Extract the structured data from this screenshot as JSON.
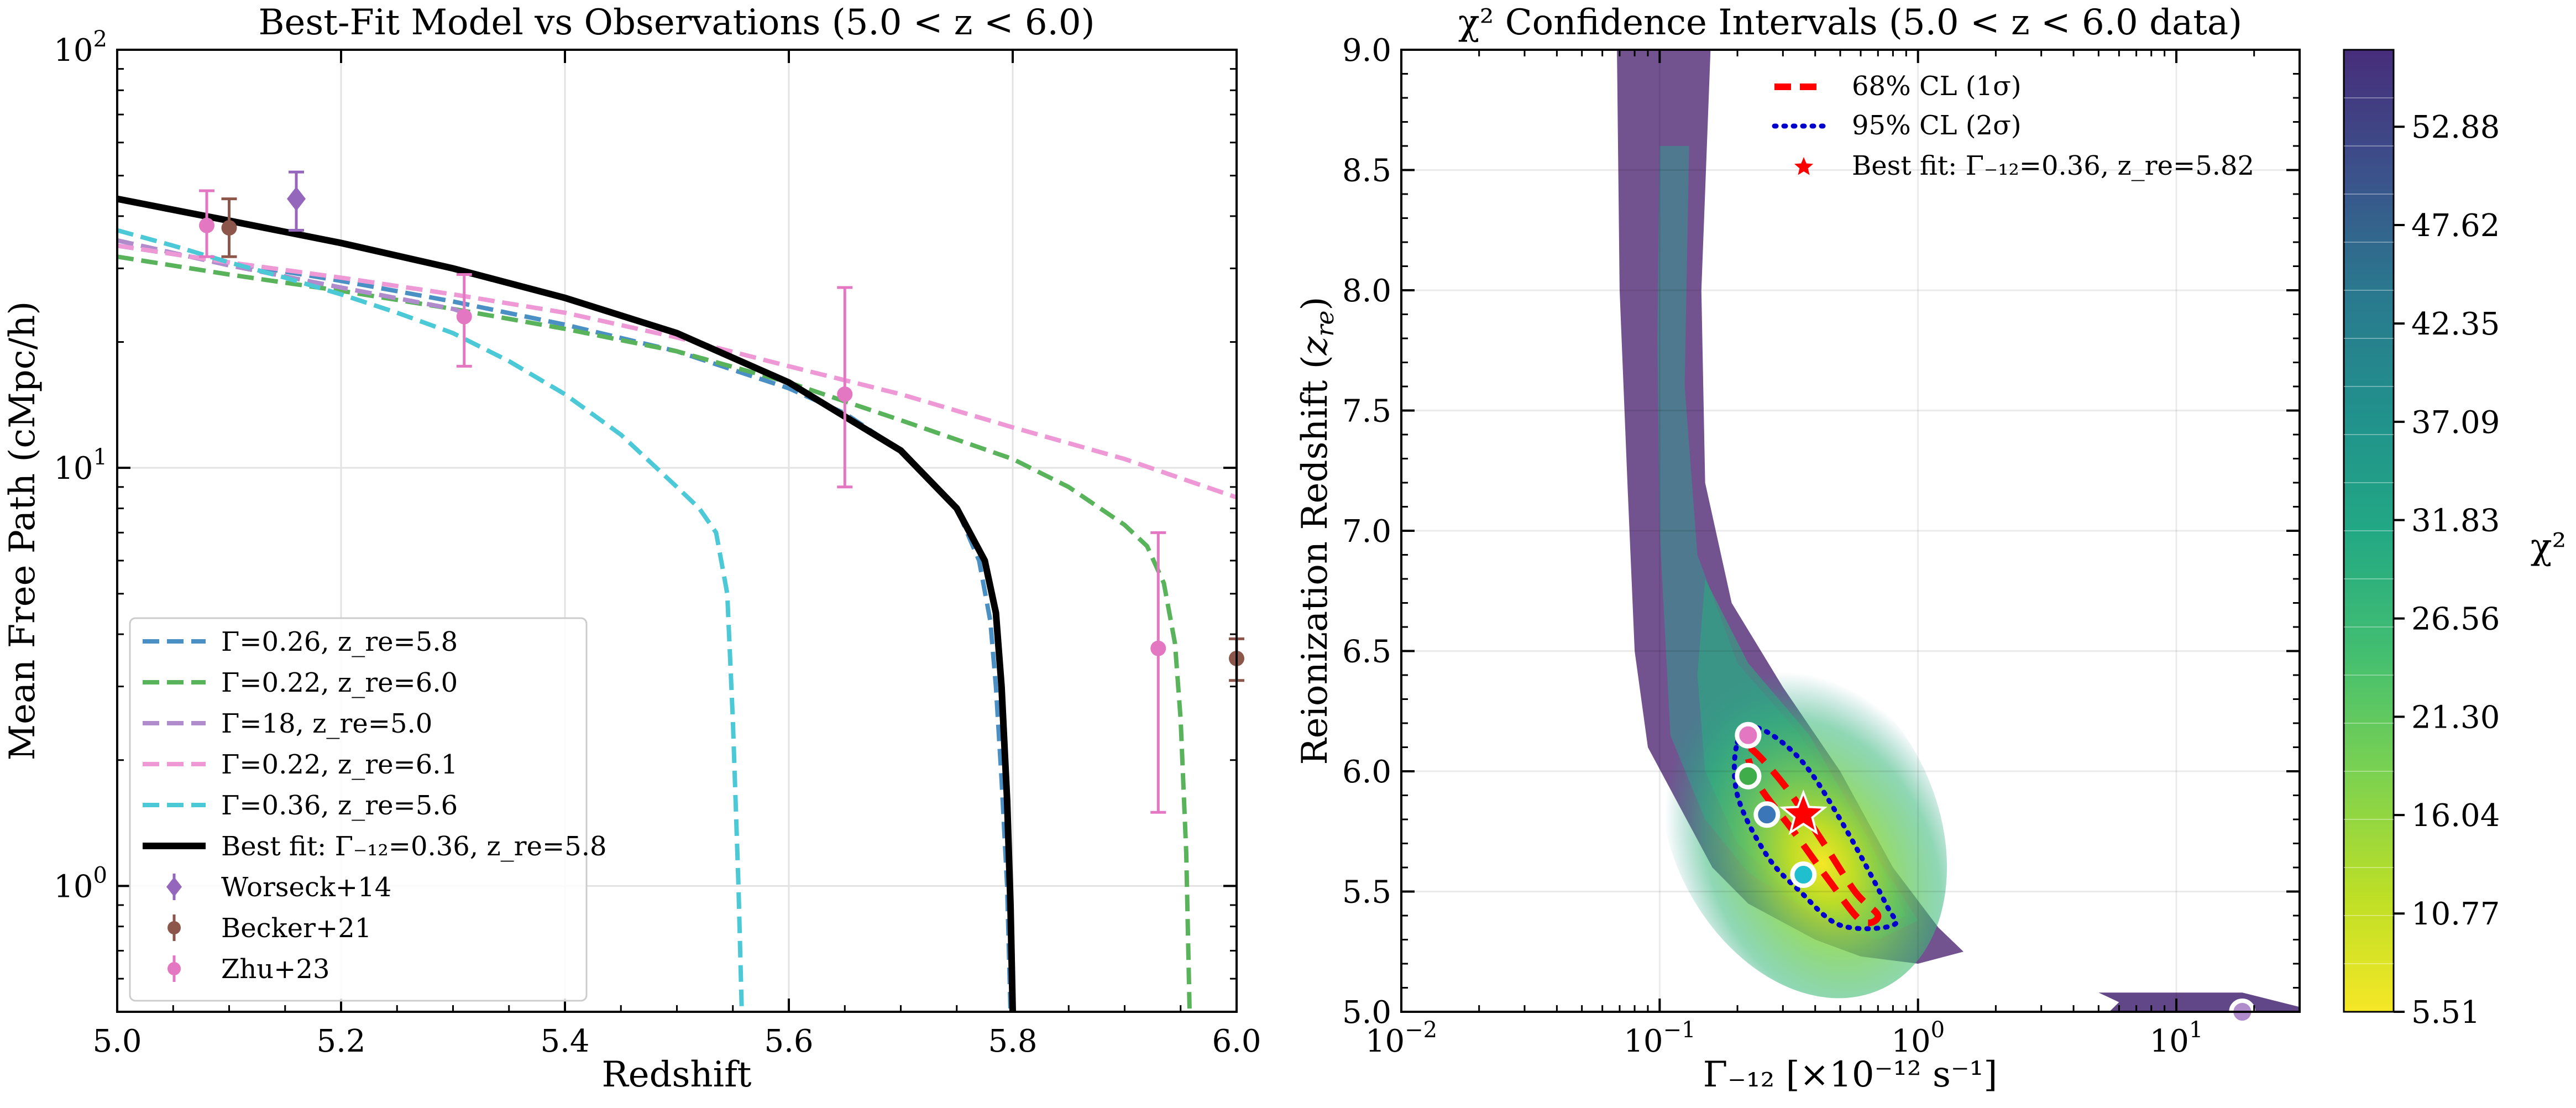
{
  "chart_data": [
    {
      "type": "line",
      "title": "Best-Fit Model vs Observations (5.0 < z < 6.0)",
      "xlabel": "Redshift",
      "ylabel": "Mean Free Path (cMpc/h)",
      "xlim": [
        5.0,
        6.0
      ],
      "ylim": [
        0.5,
        100
      ],
      "yscale": "log",
      "grid": true,
      "legend_position": "lower-left",
      "x_ticks": [
        "5.0",
        "5.2",
        "5.4",
        "5.6",
        "5.8",
        "6.0"
      ],
      "y_ticks": [
        {
          "value": 1,
          "mantissa": "10",
          "exp": "0"
        },
        {
          "value": 10,
          "mantissa": "10",
          "exp": "1"
        },
        {
          "value": 100,
          "mantissa": "10",
          "exp": "2"
        }
      ],
      "series": [
        {
          "name": "Γ=0.26, z_re=5.8",
          "style": "dashed",
          "color": "#4a90c4",
          "x": [
            5.0,
            5.1,
            5.2,
            5.3,
            5.4,
            5.5,
            5.6,
            5.65,
            5.7,
            5.75,
            5.77,
            5.78,
            5.785,
            5.79,
            5.795,
            5.798
          ],
          "y": [
            34,
            31,
            28,
            25,
            22,
            19,
            15.5,
            13.5,
            11,
            8,
            6,
            4.3,
            3,
            1.8,
            1,
            0.5
          ]
        },
        {
          "name": "Γ=0.22, z_re=6.0",
          "style": "dashed",
          "color": "#59b35a",
          "x": [
            5.0,
            5.1,
            5.2,
            5.3,
            5.4,
            5.5,
            5.6,
            5.7,
            5.8,
            5.85,
            5.9,
            5.92,
            5.935,
            5.945,
            5.95,
            5.955,
            5.958
          ],
          "y": [
            32,
            29,
            26.5,
            24,
            21.5,
            19,
            16,
            13,
            10.5,
            9,
            7.3,
            6.5,
            5.3,
            3.8,
            2.5,
            1.2,
            0.5
          ]
        },
        {
          "name": "Γ=18, z_re=5.0",
          "style": "dashed",
          "color": "#b08ccd",
          "x": [
            5.0,
            5.1,
            5.2,
            5.3,
            5.31
          ],
          "y": [
            35,
            30.5,
            27,
            24,
            23.5
          ]
        },
        {
          "name": "Γ=0.22, z_re=6.1",
          "style": "dashed",
          "color": "#ef98d6",
          "x": [
            5.0,
            5.1,
            5.2,
            5.3,
            5.4,
            5.5,
            5.6,
            5.7,
            5.8,
            5.9,
            6.0
          ],
          "y": [
            34,
            31,
            28.5,
            26,
            23.5,
            20.5,
            17.5,
            15,
            12.5,
            10.5,
            8.5
          ]
        },
        {
          "name": "Γ=0.36, z_re=5.6",
          "style": "dashed",
          "color": "#4cc9d6",
          "x": [
            5.0,
            5.05,
            5.1,
            5.15,
            5.2,
            5.25,
            5.3,
            5.35,
            5.4,
            5.45,
            5.5,
            5.52,
            5.535,
            5.545,
            5.55,
            5.555,
            5.558
          ],
          "y": [
            37,
            34,
            31,
            28.5,
            26,
            23.5,
            21,
            18,
            15,
            12,
            9,
            8,
            7,
            5,
            2.5,
            1,
            0.5
          ]
        },
        {
          "name": "Best fit: Γ₋₁₂=0.36, z_re=5.8",
          "style": "solid",
          "color": "#000000",
          "x": [
            5.0,
            5.1,
            5.2,
            5.3,
            5.4,
            5.5,
            5.6,
            5.7,
            5.75,
            5.775,
            5.785,
            5.79,
            5.795,
            5.798,
            5.8
          ],
          "y": [
            44,
            39,
            34.5,
            30,
            25.5,
            21,
            16,
            11,
            8,
            6,
            4.5,
            3,
            1.6,
            0.9,
            0.5
          ]
        }
      ],
      "observations": [
        {
          "name": "Worseck+14",
          "marker": "diamond",
          "color": "#9467bd",
          "points": [
            {
              "x": 5.16,
              "y": 44,
              "ylo": 37,
              "yhi": 51
            }
          ]
        },
        {
          "name": "Becker+21",
          "marker": "circle",
          "color": "#8c564b",
          "points": [
            {
              "x": 5.1,
              "y": 37.5,
              "ylo": 32,
              "yhi": 44
            },
            {
              "x": 6.0,
              "y": 3.5,
              "ylo": 3.1,
              "yhi": 3.9
            }
          ]
        },
        {
          "name": "Zhu+23",
          "marker": "circle",
          "color": "#e377c2",
          "points": [
            {
              "x": 5.08,
              "y": 38,
              "ylo": 32,
              "yhi": 46
            },
            {
              "x": 5.31,
              "y": 23,
              "ylo": 17.5,
              "yhi": 29
            },
            {
              "x": 5.65,
              "y": 15,
              "ylo": 9,
              "yhi": 27
            },
            {
              "x": 5.93,
              "y": 3.7,
              "ylo": 1.5,
              "yhi": 7
            }
          ]
        }
      ]
    },
    {
      "type": "contour",
      "title": "χ² Confidence Intervals (5.0 < z < 6.0 data)",
      "xlabel": "Γ₋₁₂ [×10⁻¹² s⁻¹]",
      "ylabel_main": "Reionization Redshift (",
      "ylabel_sym": "z",
      "ylabel_sub": "re",
      "ylabel_end": ")",
      "xlim": [
        0.01,
        30
      ],
      "xscale": "log",
      "ylim": [
        5.0,
        9.0
      ],
      "grid": true,
      "legend_position": "upper-right",
      "x_ticks": [
        {
          "value": 0.01,
          "mantissa": "10",
          "exp": "−2"
        },
        {
          "value": 0.1,
          "mantissa": "10",
          "exp": "−1"
        },
        {
          "value": 1,
          "mantissa": "10",
          "exp": "0"
        },
        {
          "value": 10,
          "mantissa": "10",
          "exp": "1"
        }
      ],
      "y_ticks": [
        "5.0",
        "5.5",
        "6.0",
        "6.5",
        "7.0",
        "7.5",
        "8.0",
        "8.5",
        "9.0"
      ],
      "colorbar": {
        "label": "χ²",
        "colormap": "viridis_r",
        "ticks": [
          "5.51",
          "10.77",
          "16.04",
          "21.30",
          "26.56",
          "31.83",
          "37.09",
          "42.35",
          "47.62",
          "52.88"
        ],
        "min": 5.51,
        "max": 57
      },
      "best_fit": {
        "gamma": 0.36,
        "z_re": 5.82
      },
      "cl68": {
        "name": "68% CL (1σ)",
        "color": "#ff0000",
        "points": [
          [
            0.22,
            6.1
          ],
          [
            0.3,
            5.95
          ],
          [
            0.42,
            5.72
          ],
          [
            0.57,
            5.5
          ],
          [
            0.7,
            5.4
          ],
          [
            0.6,
            5.38
          ],
          [
            0.45,
            5.55
          ],
          [
            0.33,
            5.75
          ],
          [
            0.24,
            5.95
          ]
        ]
      },
      "cl95": {
        "name": "95% CL (2σ)",
        "color": "#0000cc",
        "points": [
          [
            0.2,
            6.12
          ],
          [
            0.24,
            6.18
          ],
          [
            0.35,
            6.05
          ],
          [
            0.5,
            5.8
          ],
          [
            0.75,
            5.45
          ],
          [
            0.8,
            5.36
          ],
          [
            0.5,
            5.36
          ],
          [
            0.35,
            5.5
          ],
          [
            0.26,
            5.65
          ],
          [
            0.2,
            5.9
          ]
        ]
      },
      "best_fit_label": "Best fit: Γ₋₁₂=0.36, z_re=5.82",
      "markers": [
        {
          "gamma": 0.22,
          "z_re": 6.15,
          "color": "#e377c2"
        },
        {
          "gamma": 0.22,
          "z_re": 5.98,
          "color": "#3fae4a"
        },
        {
          "gamma": 0.26,
          "z_re": 5.82,
          "color": "#3a76b8"
        },
        {
          "gamma": 0.36,
          "z_re": 5.57,
          "color": "#1fbfcf"
        },
        {
          "gamma": 18,
          "z_re": 5.0,
          "color": "#b08ccd"
        }
      ]
    }
  ]
}
